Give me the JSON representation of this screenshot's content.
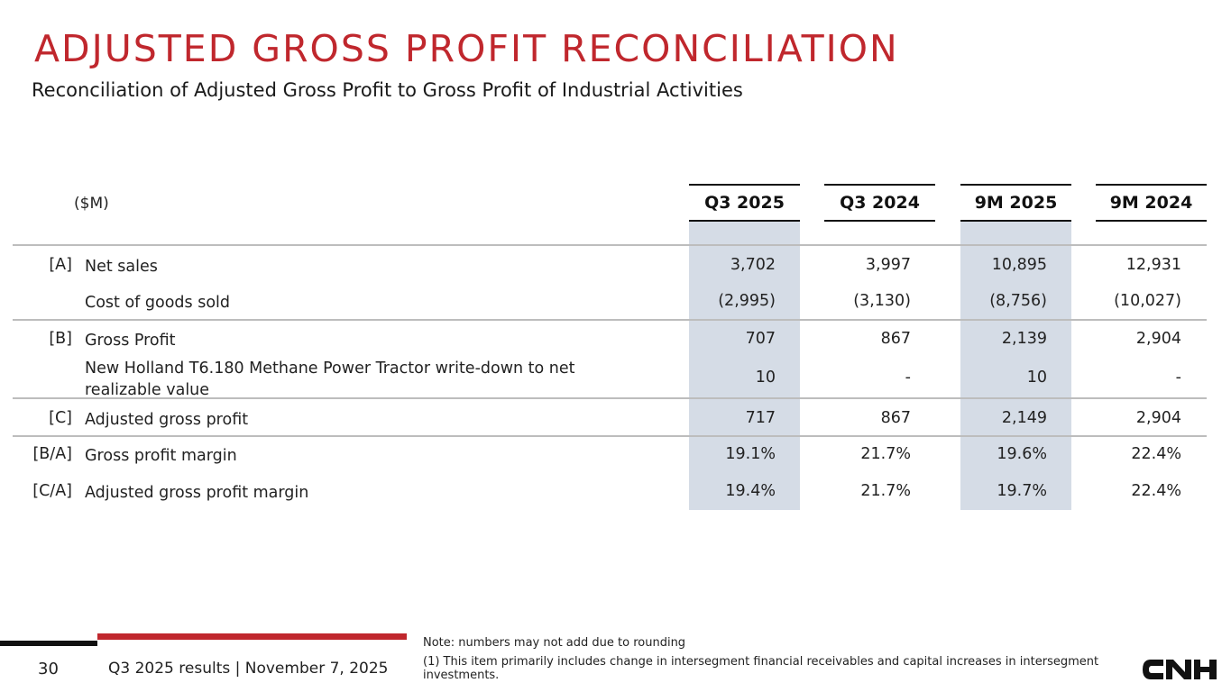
{
  "header": {
    "title": "ADJUSTED GROSS PROFIT RECONCILIATION",
    "subtitle": "Reconciliation of Adjusted Gross Profit to Gross Profit of Industrial Activities"
  },
  "table": {
    "unit_label": "($M)",
    "columns": [
      "Q3 2025",
      "Q3 2024",
      "9M 2025",
      "9M 2024"
    ],
    "rows": [
      {
        "code": "[A]",
        "label": "Net sales",
        "values": [
          "3,702",
          "3,997",
          "10,895",
          "12,931"
        ]
      },
      {
        "code": "",
        "label": "Cost of goods sold",
        "values": [
          "(2,995)",
          "(3,130)",
          "(8,756)",
          "(10,027)"
        ]
      },
      {
        "code": "[B]",
        "label": "Gross Profit",
        "values": [
          "707",
          "867",
          "2,139",
          "2,904"
        ]
      },
      {
        "code": "",
        "label": "New Holland T6.180 Methane Power Tractor write-down to net realizable value",
        "values": [
          "10",
          "-",
          "10",
          "-"
        ]
      },
      {
        "code": "[C]",
        "label": "Adjusted gross profit",
        "values": [
          "717",
          "867",
          "2,149",
          "2,904"
        ]
      },
      {
        "code": "[B/A]",
        "label": "Gross profit margin",
        "values": [
          "19.1%",
          "21.7%",
          "19.6%",
          "22.4%"
        ]
      },
      {
        "code": "[C/A]",
        "label": "Adjusted gross profit margin",
        "values": [
          "19.4%",
          "21.7%",
          "19.7%",
          "22.4%"
        ]
      }
    ]
  },
  "footer": {
    "page_number": "30",
    "event": "Q3 2025 results | November 7, 2025",
    "note": "Note: numbers may not add due to rounding",
    "footnote": "(1) This item primarily includes change in intersegment financial receivables and capital increases in intersegment investments.",
    "logo_text": "CNH"
  },
  "colors": {
    "accent_red": "#c0272d",
    "column_shade": "#d5dce6",
    "text": "#222222"
  }
}
